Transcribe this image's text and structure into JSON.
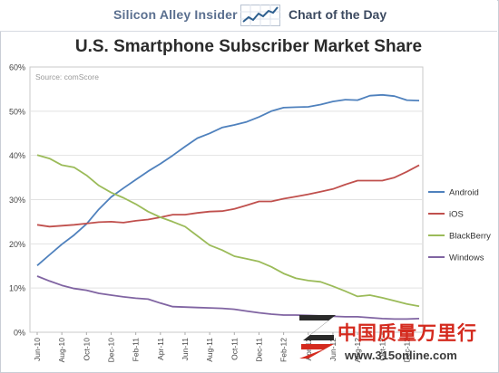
{
  "header": {
    "brand": "Silicon Alley Insider",
    "section": "Chart of the Day"
  },
  "watermark": {
    "text": "中国质量万里行",
    "url": "www.315online.com"
  },
  "chart_data": {
    "type": "line",
    "title": "U.S. Smartphone Subscriber Market Share",
    "source": "Source: comScore",
    "xlabel": "",
    "ylabel": "",
    "ylim": [
      0,
      60
    ],
    "yticks": [
      "0%",
      "10%",
      "20%",
      "30%",
      "40%",
      "50%",
      "60%"
    ],
    "x": [
      "Jun-10",
      "Jul-10",
      "Aug-10",
      "Sep-10",
      "Oct-10",
      "Nov-10",
      "Dec-10",
      "Jan-11",
      "Feb-11",
      "Mar-11",
      "Apr-11",
      "May-11",
      "Jun-11",
      "Jul-11",
      "Aug-11",
      "Sep-11",
      "Oct-11",
      "Nov-11",
      "Dec-11",
      "Jan-12",
      "Feb-12",
      "Mar-12",
      "Apr-12",
      "May-12",
      "Jun-12",
      "Jul-12",
      "Aug-12",
      "Sep-12",
      "Oct-12",
      "Nov-12",
      "Dec-12",
      "Jan-13"
    ],
    "xtick_labels": [
      "Jun-10",
      "Aug-10",
      "Oct-10",
      "Dec-10",
      "Feb-11",
      "Apr-11",
      "Jun-11",
      "Aug-11",
      "Oct-11",
      "Dec-11",
      "Feb-12",
      "Apr-12",
      "Jun-12",
      "Aug-12",
      "Oct-12",
      "Dec-12"
    ],
    "grid": true,
    "legend": "right",
    "series": [
      {
        "name": "Android",
        "color": "#4f81bd",
        "values": [
          15.1,
          17.5,
          19.9,
          22.0,
          24.5,
          27.8,
          30.6,
          32.6,
          34.5,
          36.4,
          38.1,
          40.0,
          42.0,
          43.9,
          45.0,
          46.3,
          46.9,
          47.6,
          48.7,
          50.0,
          50.8,
          50.9,
          51.0,
          51.5,
          52.2,
          52.6,
          52.5,
          53.5,
          53.7,
          53.4,
          52.5,
          52.4
        ]
      },
      {
        "name": "iOS",
        "color": "#c0504d",
        "values": [
          24.3,
          23.9,
          24.1,
          24.3,
          24.6,
          24.9,
          25.0,
          24.8,
          25.2,
          25.5,
          26.0,
          26.6,
          26.6,
          27.0,
          27.3,
          27.4,
          27.9,
          28.7,
          29.6,
          29.6,
          30.2,
          30.7,
          31.2,
          31.8,
          32.4,
          33.4,
          34.3,
          34.3,
          34.3,
          35.0,
          36.3,
          37.8
        ]
      },
      {
        "name": "BlackBerry",
        "color": "#9bbb59",
        "values": [
          40.1,
          39.3,
          37.8,
          37.3,
          35.5,
          33.2,
          31.6,
          30.4,
          29.0,
          27.3,
          26.0,
          25.0,
          23.9,
          21.8,
          19.7,
          18.6,
          17.2,
          16.6,
          16.0,
          14.8,
          13.3,
          12.2,
          11.7,
          11.4,
          10.4,
          9.3,
          8.1,
          8.4,
          7.8,
          7.1,
          6.4,
          5.9
        ]
      },
      {
        "name": "Windows",
        "color": "#8064a2",
        "values": [
          12.7,
          11.6,
          10.6,
          9.9,
          9.5,
          8.8,
          8.4,
          8.0,
          7.7,
          7.5,
          6.6,
          5.8,
          5.7,
          5.6,
          5.5,
          5.4,
          5.2,
          4.8,
          4.4,
          4.1,
          3.9,
          3.9,
          3.8,
          3.7,
          3.6,
          3.5,
          3.5,
          3.3,
          3.1,
          3.0,
          3.0,
          3.1
        ]
      }
    ]
  }
}
